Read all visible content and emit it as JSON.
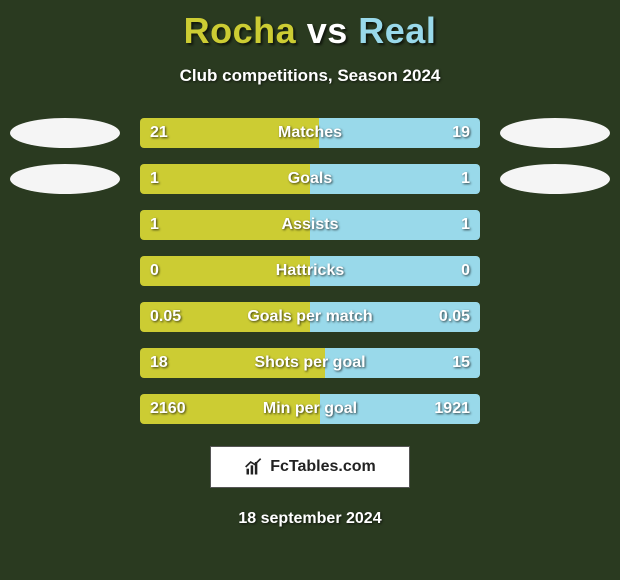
{
  "background_color": "#2a3a20",
  "title": {
    "left": "Rocha",
    "vs": "vs",
    "right": "Real",
    "left_color": "#cccc33",
    "vs_color": "#ffffff",
    "right_color": "#99d9ea",
    "fontsize": 36
  },
  "subtitle": "Club competitions, Season 2024",
  "bar_colors": {
    "left": "#cccc33",
    "right": "#99d9ea"
  },
  "badge_colors": {
    "left": "#f5f5f5",
    "right": "#f5f5f5"
  },
  "rows": [
    {
      "label": "Matches",
      "left": "21",
      "right": "19",
      "left_pct": 52.5,
      "show_badges": true
    },
    {
      "label": "Goals",
      "left": "1",
      "right": "1",
      "left_pct": 50,
      "show_badges": true
    },
    {
      "label": "Assists",
      "left": "1",
      "right": "1",
      "left_pct": 50,
      "show_badges": false
    },
    {
      "label": "Hattricks",
      "left": "0",
      "right": "0",
      "left_pct": 50,
      "show_badges": false
    },
    {
      "label": "Goals per match",
      "left": "0.05",
      "right": "0.05",
      "left_pct": 50,
      "show_badges": false
    },
    {
      "label": "Shots per goal",
      "left": "18",
      "right": "15",
      "left_pct": 54.5,
      "show_badges": false
    },
    {
      "label": "Min per goal",
      "left": "2160",
      "right": "1921",
      "left_pct": 52.9,
      "show_badges": false
    }
  ],
  "watermark": "FcTables.com",
  "date": "18 september 2024"
}
